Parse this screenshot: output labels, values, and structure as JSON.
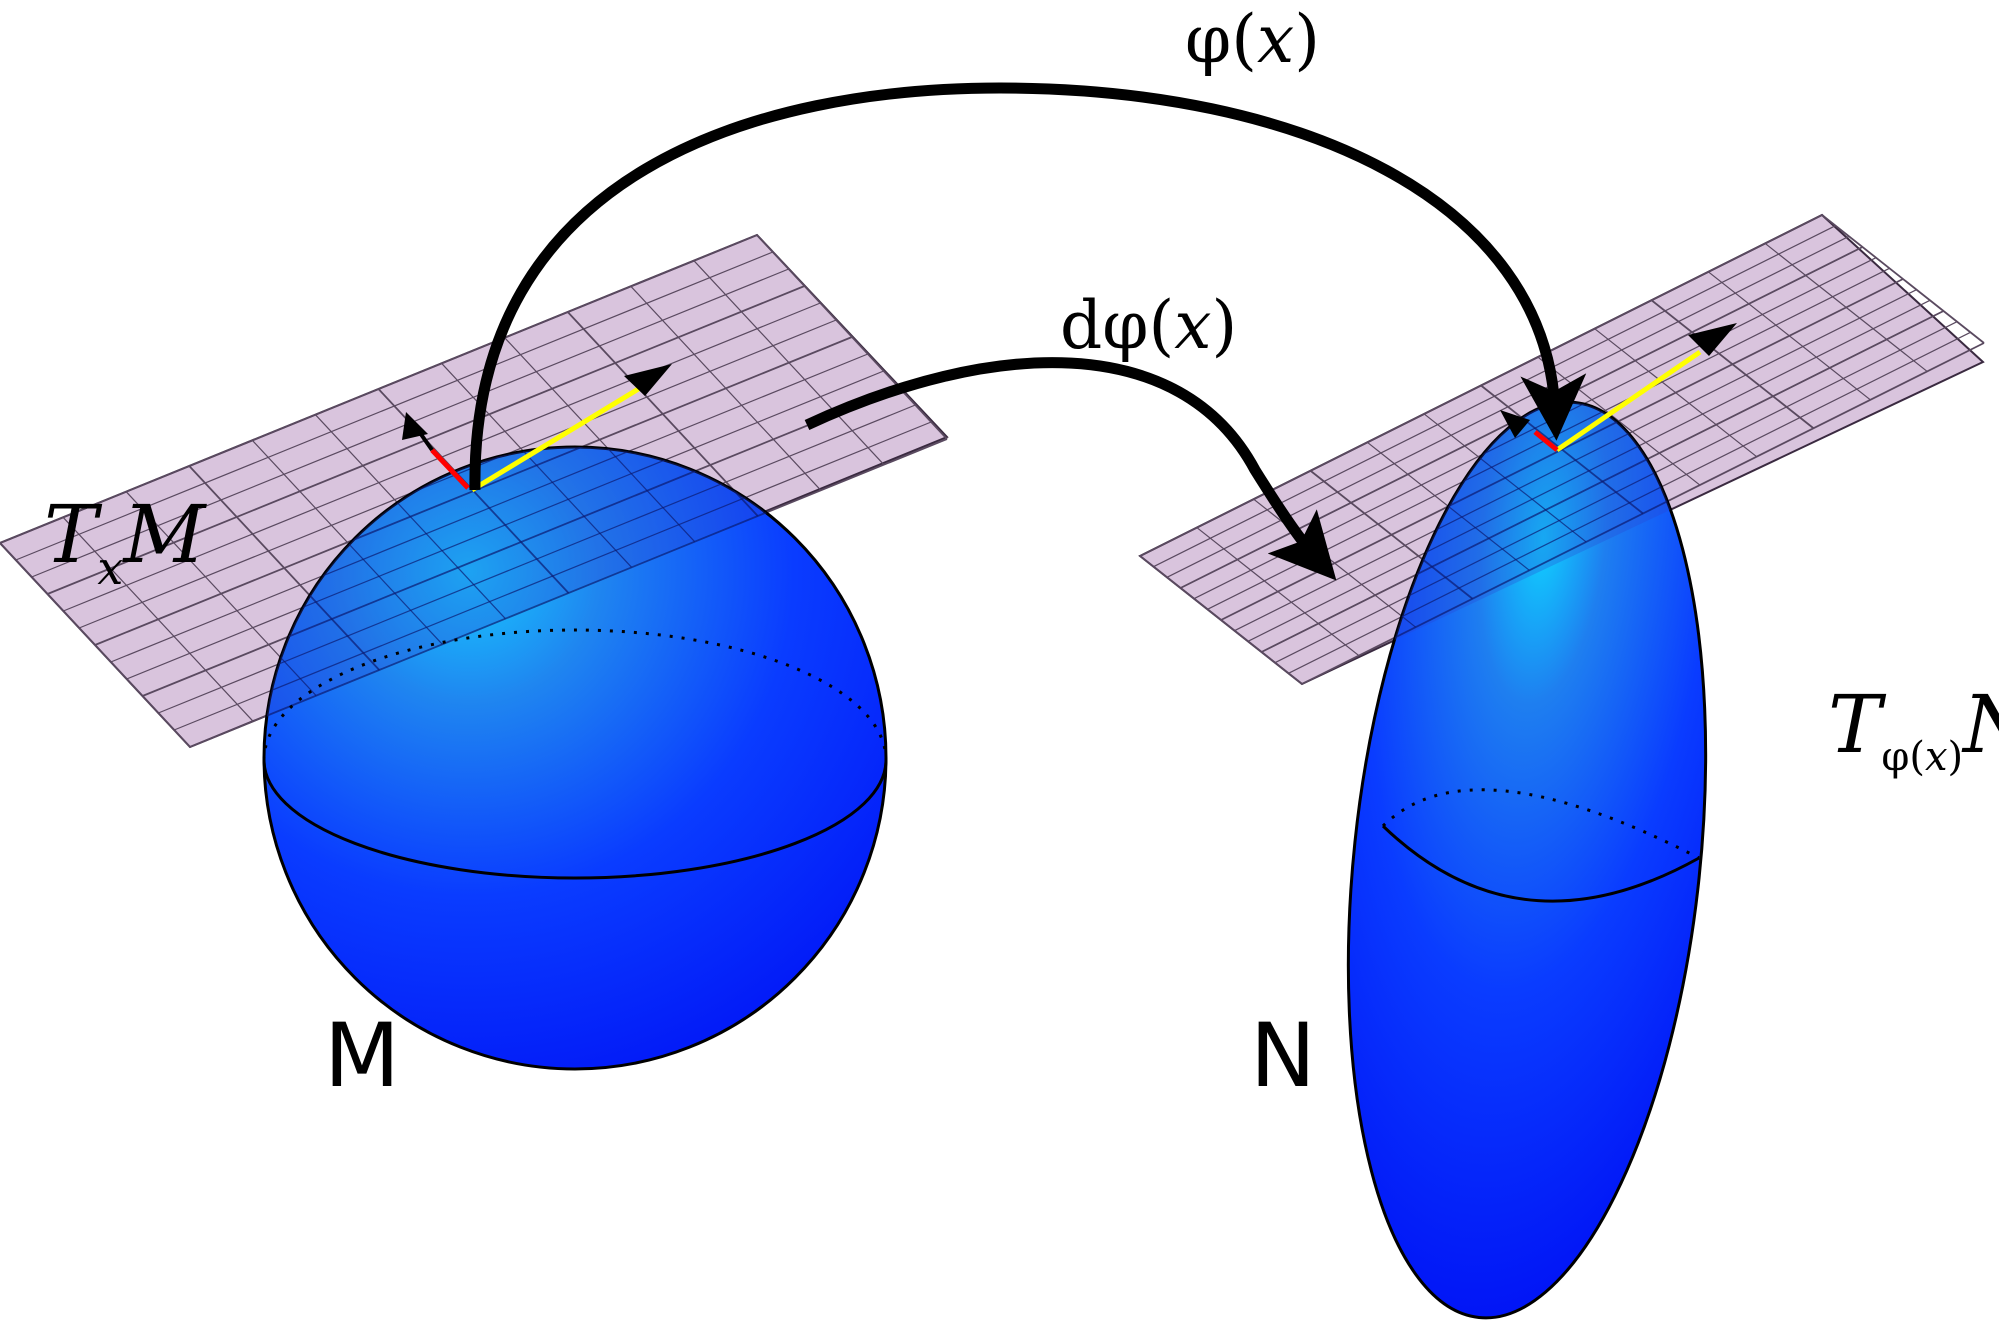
{
  "labels": {
    "phi_map": {
      "phi": "φ",
      "open": "(",
      "x": "x",
      "close": ")"
    },
    "dphi_map": {
      "d": "d",
      "phi": "φ",
      "open": "(",
      "x": "x",
      "close": ")"
    },
    "tangent_m": {
      "T": "T",
      "sub": "x",
      "M": "M"
    },
    "tangent_n": {
      "T": "T",
      "sub_phi": "φ",
      "sub_open": "(",
      "sub_x": "x",
      "sub_close": ")",
      "N": "N"
    },
    "manifold_m": "M",
    "manifold_n": "N"
  },
  "colors": {
    "plane_fill": "#d9c4dd",
    "plane_grid": "#5a4a60",
    "surface_light": "#18c8ff",
    "surface_dark": "#0010ff",
    "arrow": "#000000",
    "vector_yellow": "#ffff00",
    "vector_red": "#ff0000"
  }
}
